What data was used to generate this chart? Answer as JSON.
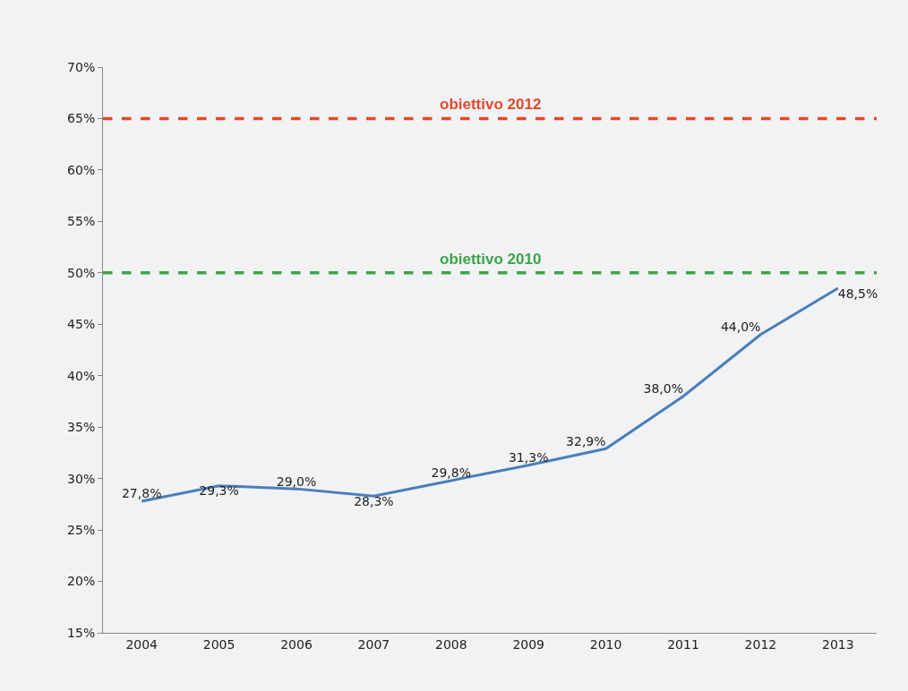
{
  "chart_data": {
    "type": "line",
    "categories": [
      "2004",
      "2005",
      "2006",
      "2007",
      "2008",
      "2009",
      "2010",
      "2011",
      "2012",
      "2013"
    ],
    "series": [
      {
        "color": "#4a7ebb",
        "values": [
          27.8,
          29.3,
          29.0,
          28.3,
          29.8,
          31.3,
          32.9,
          38.0,
          44.0,
          48.5
        ],
        "value_labels": [
          "27,8%",
          "29,3%",
          "29,0%",
          "28,3%",
          "29,8%",
          "31,3%",
          "32,9%",
          "38,0%",
          "44,0%",
          "48,5%"
        ]
      }
    ],
    "ylim": [
      15,
      70
    ],
    "yticks": [
      {
        "value": 15,
        "label": "15%"
      },
      {
        "value": 20,
        "label": "20%"
      },
      {
        "value": 25,
        "label": "25%"
      },
      {
        "value": 30,
        "label": "30%"
      },
      {
        "value": 35,
        "label": "35%"
      },
      {
        "value": 40,
        "label": "40%"
      },
      {
        "value": 45,
        "label": "45%"
      },
      {
        "value": 50,
        "label": "50%"
      },
      {
        "value": 55,
        "label": "55%"
      },
      {
        "value": 60,
        "label": "60%"
      },
      {
        "value": 65,
        "label": "65%"
      },
      {
        "value": 70,
        "label": "70%"
      }
    ],
    "ref_lines": [
      {
        "axis": "y",
        "value": 65,
        "label": "obiettivo 2012",
        "color": "#e2492b",
        "line_style": "dashed"
      },
      {
        "axis": "y",
        "value": 50,
        "label": "obiettivo 2010",
        "color": "#3aa547",
        "line_style": "dashed"
      }
    ],
    "grid": false,
    "marker": "none",
    "line_style": "solid"
  }
}
